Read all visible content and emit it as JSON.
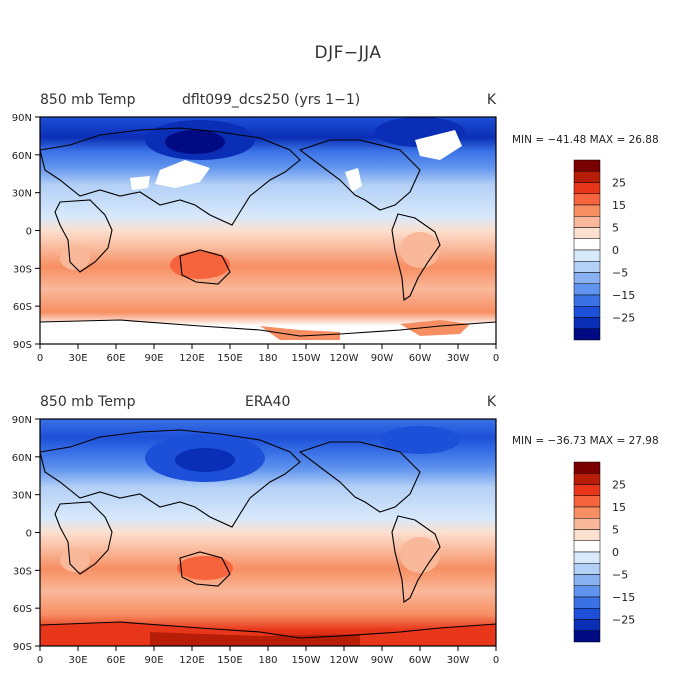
{
  "figure": {
    "title": "DJF−JJA"
  },
  "panels": [
    {
      "left_title": "850 mb Temp",
      "center_title": "dflt099_dcs250 (yrs 1−1)",
      "units": "K",
      "stats": "MIN = −41.48  MAX =  26.88"
    },
    {
      "left_title": "850 mb Temp",
      "center_title": "ERA40",
      "units": "K",
      "stats": "MIN = −36.73  MAX =  27.98"
    }
  ],
  "axes": {
    "lon_labels": [
      "0",
      "30E",
      "60E",
      "90E",
      "120E",
      "150E",
      "180",
      "150W",
      "120W",
      "90W",
      "60W",
      "30W",
      "0"
    ],
    "lat_labels": [
      "90N",
      "60N",
      "30N",
      "0",
      "30S",
      "60S",
      "90S"
    ]
  },
  "colorbar": {
    "tick_labels": [
      "25",
      "15",
      "5",
      "0",
      "−5",
      "−15",
      "−25"
    ],
    "colors": [
      "#7a0000",
      "#b81d08",
      "#e8361a",
      "#f5643c",
      "#f78f63",
      "#f9b89a",
      "#fce0cf",
      "#ffffff",
      "#d8e9fb",
      "#b3d0f6",
      "#8ab2f2",
      "#6094ee",
      "#3a72e6",
      "#1d50d8",
      "#0a2eb5",
      "#000a82"
    ]
  },
  "chart_data": [
    {
      "type": "heatmap",
      "title": "850 mb Temp",
      "subtitle": "dflt099_dcs250 (yrs 1−1)",
      "units": "K",
      "x": [
        0,
        30,
        60,
        90,
        120,
        150,
        180,
        210,
        240,
        270,
        300,
        330,
        360
      ],
      "y": [
        -90,
        -60,
        -30,
        0,
        30,
        60,
        90
      ],
      "min": -41.48,
      "max": 26.88,
      "levels": [
        -30,
        -25,
        -20,
        -15,
        -10,
        -5,
        -2.5,
        0,
        2.5,
        5,
        10,
        15,
        20,
        25,
        30
      ]
    },
    {
      "type": "heatmap",
      "title": "850 mb Temp",
      "subtitle": "ERA40",
      "units": "K",
      "x": [
        0,
        30,
        60,
        90,
        120,
        150,
        180,
        210,
        240,
        270,
        300,
        330,
        360
      ],
      "y": [
        -90,
        -60,
        -30,
        0,
        30,
        60,
        90
      ],
      "min": -36.73,
      "max": 27.98,
      "levels": [
        -30,
        -25,
        -20,
        -15,
        -10,
        -5,
        -2.5,
        0,
        2.5,
        5,
        10,
        15,
        20,
        25,
        30
      ]
    }
  ]
}
